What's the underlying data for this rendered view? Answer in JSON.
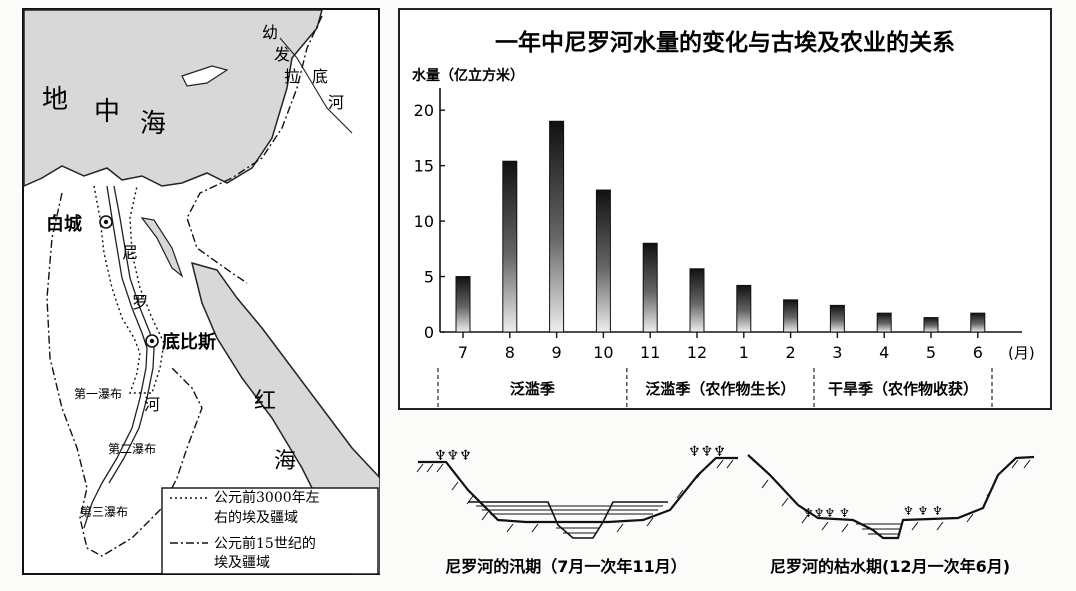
{
  "map": {
    "sea_labels": [
      "地",
      "中",
      "海"
    ],
    "red_sea_labels": [
      "红",
      "海"
    ],
    "euphrates_labels": [
      "幼",
      "发",
      "拉",
      "底",
      "河"
    ],
    "nile_labels": [
      "尼",
      "罗",
      "河"
    ],
    "cities": [
      "白城",
      "底比斯"
    ],
    "cataracts": [
      "第一瀑布",
      "第二瀑布",
      "第三瀑布"
    ],
    "legend": [
      {
        "style": "dotted",
        "lines": [
          "公元前3000年左",
          "右的埃及疆域"
        ]
      },
      {
        "style": "dash-dot",
        "lines": [
          "公元前15世纪的",
          "埃及疆域"
        ]
      }
    ]
  },
  "chart_data": {
    "type": "bar",
    "title": "一年中尼罗河水量的变化与古埃及农业的关系",
    "ylabel": "水量（亿立方米）",
    "xlabel": "(月)",
    "ylim": [
      0,
      22
    ],
    "yticks": [
      "0",
      "5",
      "10",
      "15",
      "20"
    ],
    "categories": [
      "7",
      "8",
      "9",
      "10",
      "11",
      "12",
      "1",
      "2",
      "3",
      "4",
      "5",
      "6"
    ],
    "values": [
      5,
      15.4,
      19,
      12.8,
      8,
      5.7,
      4.2,
      2.9,
      2.4,
      1.7,
      1.3,
      1.7
    ],
    "seasons": [
      {
        "label": "泛滥季",
        "months": 4
      },
      {
        "label": "泛滥季（农作物生长）",
        "months": 4
      },
      {
        "label": "干旱季（农作物收获）",
        "months": 4
      }
    ]
  },
  "sections": {
    "flood_caption": "尼罗河的汛期（7月一次年11月）",
    "dry_caption": "尼罗河的枯水期(12月一次年6月)"
  }
}
